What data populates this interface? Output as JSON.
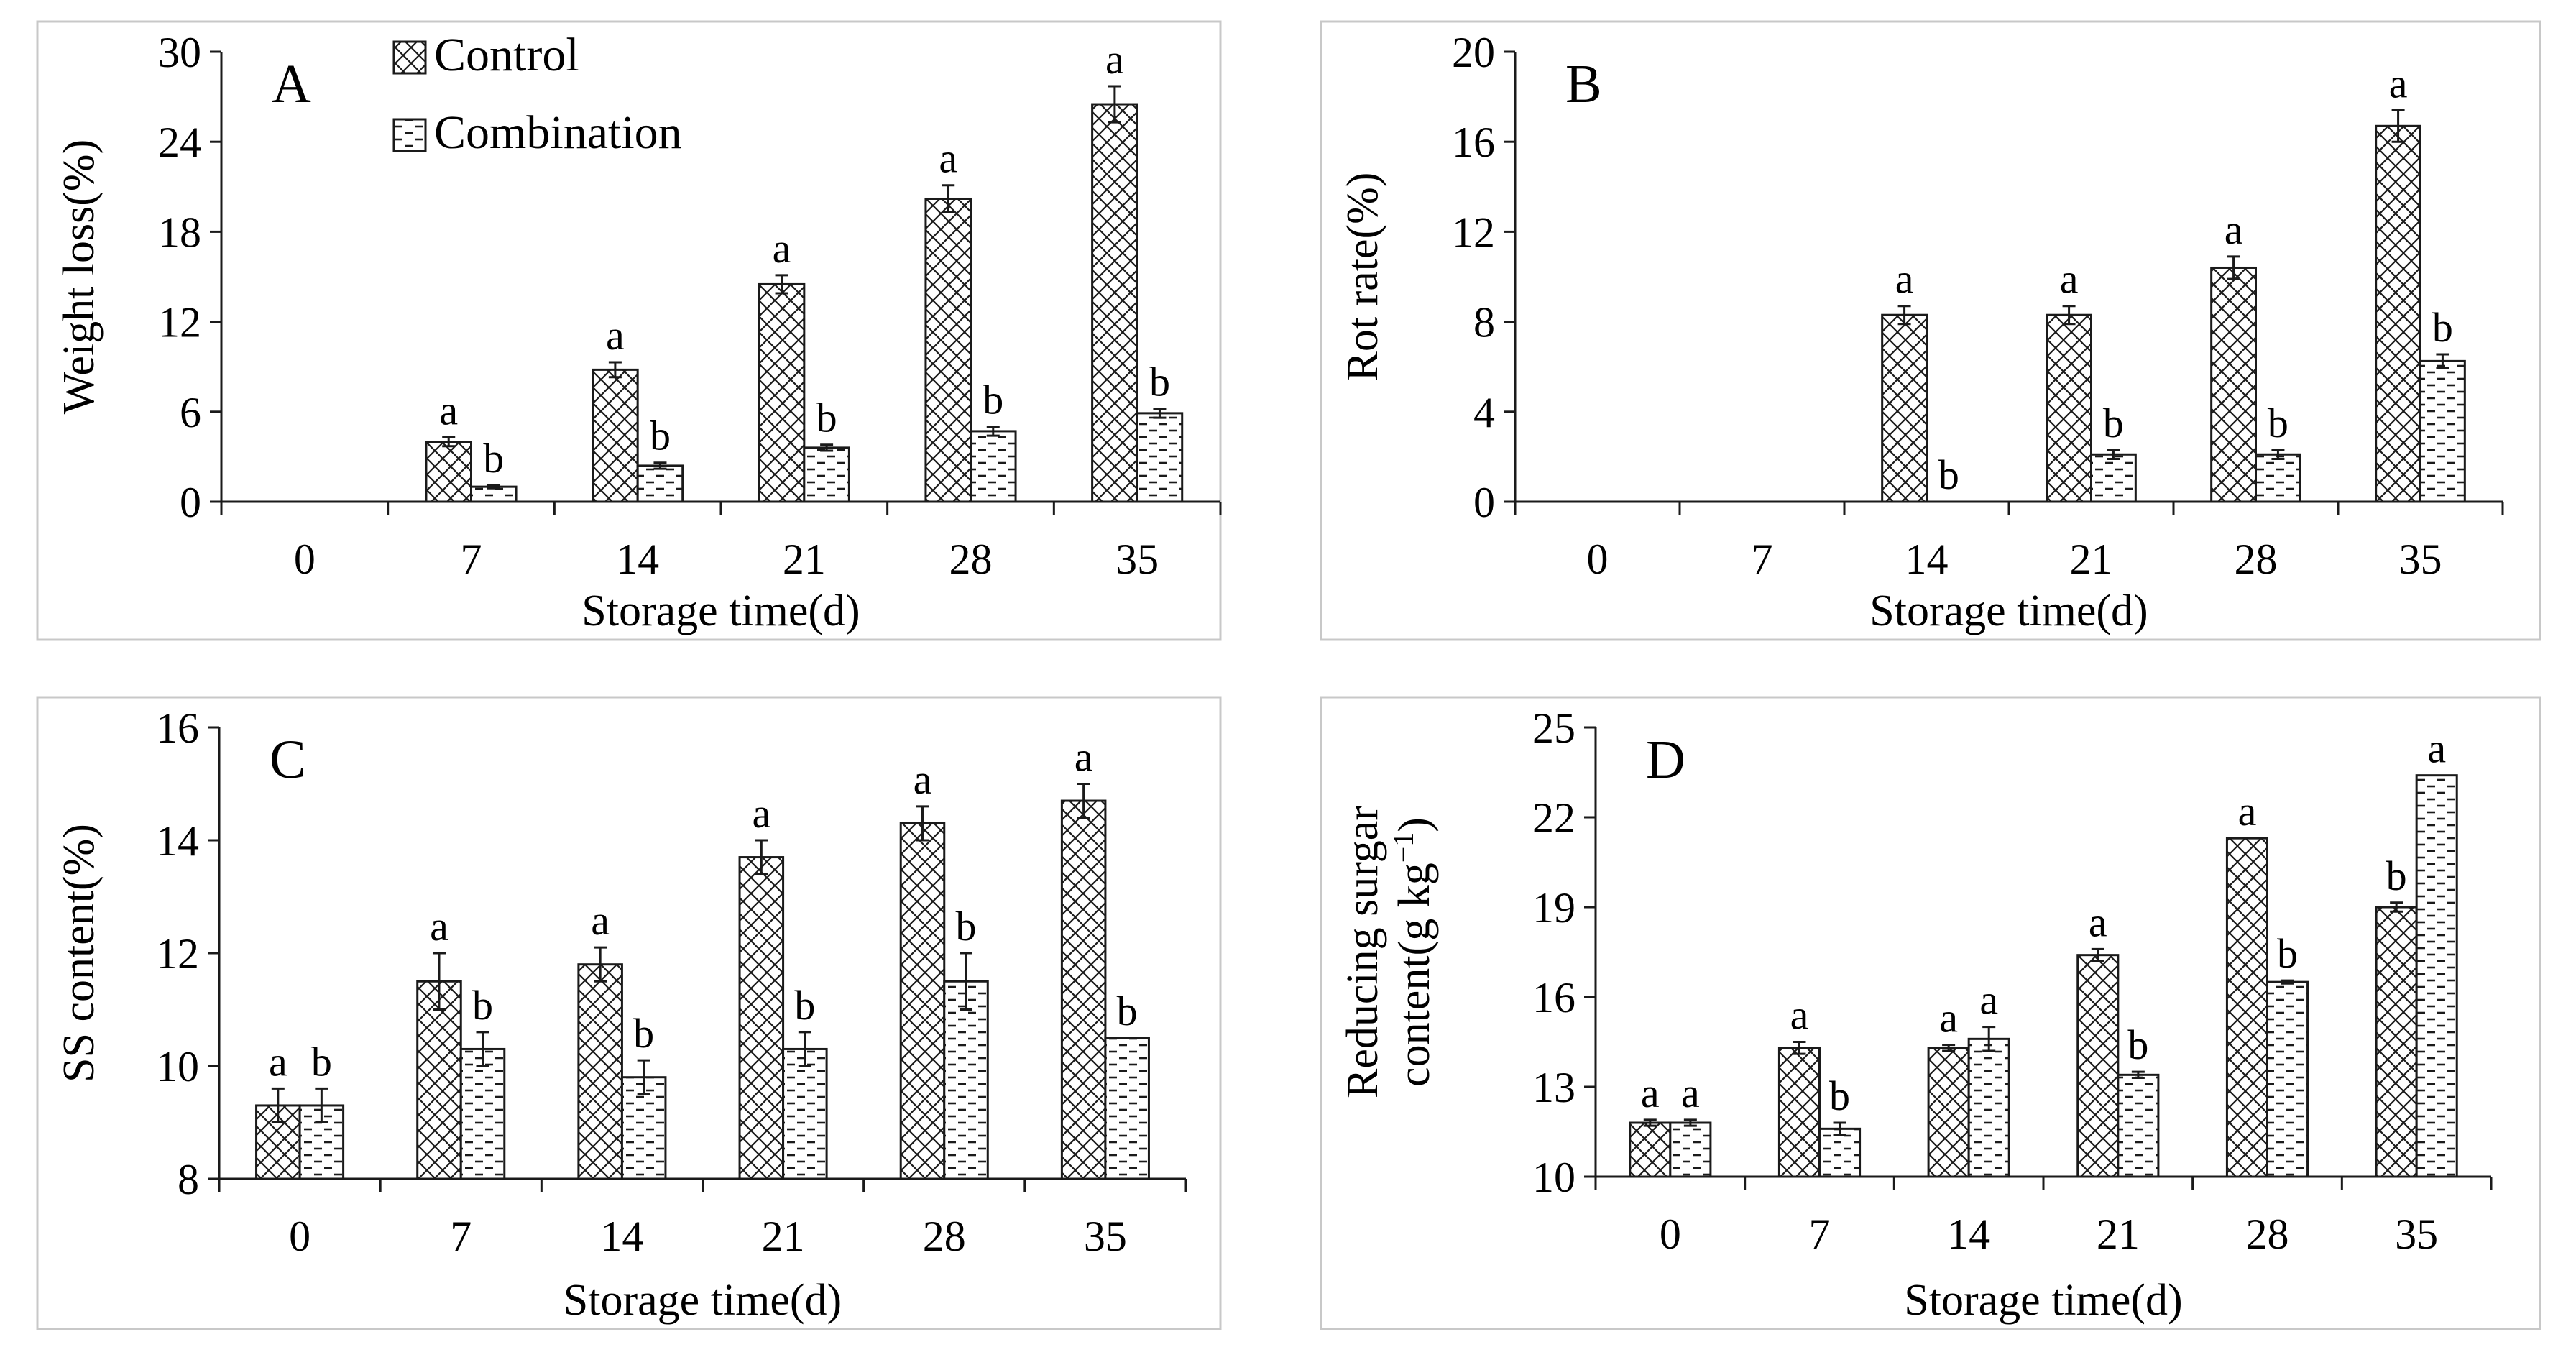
{
  "colors": {
    "control": "#1a1a1a",
    "combination": "#1a1a1a",
    "background": "#ffffff",
    "frame": "#c8c8c8"
  },
  "legend": {
    "items": [
      {
        "name": "Control",
        "pattern": "crosshatch"
      },
      {
        "name": "Combination",
        "pattern": "dashes"
      }
    ]
  },
  "chart_data": [
    {
      "panel": "A",
      "type": "bar",
      "categories": [
        "0",
        "7",
        "14",
        "21",
        "28",
        "35"
      ],
      "series": [
        {
          "name": "Control",
          "values": [
            0,
            4.0,
            8.8,
            14.5,
            20.2,
            26.5
          ],
          "errors": [
            0,
            0.3,
            0.5,
            0.6,
            0.9,
            1.2
          ],
          "labels": [
            "",
            "a",
            "a",
            "a",
            "a",
            "a"
          ]
        },
        {
          "name": "Combination",
          "values": [
            0,
            1.0,
            2.4,
            3.6,
            4.7,
            5.9
          ],
          "errors": [
            0,
            0.1,
            0.2,
            0.2,
            0.3,
            0.3
          ],
          "labels": [
            "",
            "b",
            "b",
            "b",
            "b",
            "b"
          ]
        }
      ],
      "xlabel": "Storage time(d)",
      "ylabel": "Weight loss(%)",
      "ylim": [
        0,
        30
      ],
      "yticks": [
        0,
        6,
        12,
        18,
        24,
        30
      ],
      "ytick_labels": [
        "0",
        "6",
        "12",
        "18",
        "24",
        "30"
      ],
      "grid": false,
      "legend": "top-left"
    },
    {
      "panel": "B",
      "type": "bar",
      "categories": [
        "0",
        "7",
        "14",
        "21",
        "28",
        "35"
      ],
      "series": [
        {
          "name": "Control",
          "values": [
            0,
            0,
            8.3,
            8.3,
            10.4,
            16.7
          ],
          "errors": [
            0,
            0,
            0.4,
            0.4,
            0.5,
            0.7
          ],
          "labels": [
            "",
            "",
            "a",
            "a",
            "a",
            "a"
          ]
        },
        {
          "name": "Combination",
          "values": [
            0,
            0,
            0,
            2.1,
            2.1,
            6.25
          ],
          "errors": [
            0,
            0,
            0,
            0.2,
            0.2,
            0.3
          ],
          "labels": [
            "",
            "",
            "b",
            "b",
            "b",
            "b"
          ]
        }
      ],
      "xlabel": "Storage time(d)",
      "ylabel": "Rot rate(%)",
      "ylim": [
        0,
        20
      ],
      "yticks": [
        0,
        4,
        8,
        12,
        16,
        20
      ],
      "ytick_labels": [
        "0",
        "4",
        "8",
        "12",
        "16",
        "20"
      ],
      "grid": false
    },
    {
      "panel": "C",
      "type": "bar",
      "categories": [
        "0",
        "7",
        "14",
        "21",
        "28",
        "35"
      ],
      "series": [
        {
          "name": "Control",
          "values": [
            9.3,
            11.5,
            11.8,
            13.7,
            14.3,
            14.7
          ],
          "errors": [
            0.3,
            0.5,
            0.3,
            0.3,
            0.3,
            0.3
          ],
          "labels": [
            "a",
            "a",
            "a",
            "a",
            "a",
            "a"
          ]
        },
        {
          "name": "Combination",
          "values": [
            9.3,
            10.3,
            9.8,
            10.3,
            11.5,
            10.5
          ],
          "errors": [
            0.3,
            0.3,
            0.3,
            0.3,
            0.5,
            0
          ],
          "labels": [
            "b",
            "b",
            "b",
            "b",
            "b",
            "b"
          ]
        }
      ],
      "xlabel": "Storage time(d)",
      "ylabel": "SS content(%)",
      "ylim": [
        8,
        16
      ],
      "yticks": [
        8,
        10,
        12,
        14,
        16
      ],
      "ytick_labels": [
        "8",
        "10",
        "12",
        "14",
        "16"
      ],
      "grid": false
    },
    {
      "panel": "D",
      "type": "bar",
      "categories": [
        "0",
        "7",
        "14",
        "21",
        "28",
        "35"
      ],
      "series": [
        {
          "name": "Control",
          "values": [
            11.8,
            14.3,
            14.3,
            17.4,
            21.3,
            19.0
          ],
          "errors": [
            0.1,
            0.2,
            0.1,
            0.2,
            0,
            0.15
          ],
          "labels": [
            "a",
            "a",
            "a",
            "a",
            "a",
            "b"
          ]
        },
        {
          "name": "Combination",
          "values": [
            11.8,
            11.6,
            14.6,
            13.4,
            16.5,
            23.4
          ],
          "errors": [
            0.1,
            0.2,
            0.4,
            0.1,
            0.05,
            0
          ],
          "labels": [
            "a",
            "b",
            "a",
            "b",
            "b",
            "a"
          ]
        }
      ],
      "xlabel": "Storage time(d)",
      "ylabel_line1": "Reducing surgar",
      "ylabel_line2": "content(g kg",
      "ylabel_sup": "−1",
      "ylabel_close": ")",
      "ylim": [
        10,
        25
      ],
      "yticks": [
        10,
        13,
        16,
        19,
        22,
        25
      ],
      "ytick_labels": [
        "10",
        "13",
        "16",
        "19",
        "22",
        "25"
      ],
      "grid": false
    }
  ]
}
